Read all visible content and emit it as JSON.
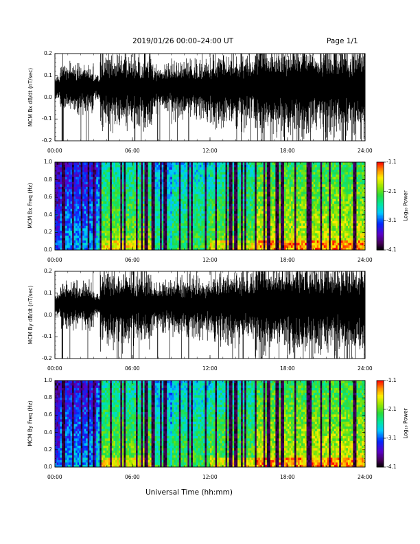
{
  "header": {
    "date_range": "2019/01/26  00:00–24:00 UT",
    "page": "Page 1/1"
  },
  "footer": {
    "xlabel": "Universal Time (hh:mm)"
  },
  "colorbar": {
    "label": "Log₁₀ Power",
    "ticks": [
      "-1.1",
      "-2.1",
      "-3.1",
      "-4.1"
    ]
  },
  "chart_data": [
    {
      "type": "line",
      "ylabel": "MCM Bx dB/dt (nT/sec)",
      "xlabel": "",
      "xlim": [
        0,
        24
      ],
      "ylim": [
        -0.2,
        0.2
      ],
      "x_ticks": [
        "00:00",
        "06:00",
        "12:00",
        "18:00",
        "24:00"
      ],
      "y_ticks": [
        "0.2",
        "0.1",
        "0.0",
        "-0.1",
        "-0.2"
      ],
      "series": [
        {
          "values": [
            0.05
          ]
        }
      ]
    },
    {
      "type": "heatmap",
      "ylabel": "MCM Bx Freq (Hz)",
      "xlim": [
        0,
        24
      ],
      "ylim": [
        0,
        1.0
      ],
      "x_ticks": [
        "00:00",
        "06:00",
        "12:00",
        "18:00",
        "24:00"
      ],
      "y_ticks": [
        "1.0",
        "0.8",
        "0.6",
        "0.4",
        "0.2",
        "0.0"
      ],
      "zlim": [
        -4.1,
        -1.1
      ]
    },
    {
      "type": "line",
      "ylabel": "MCM By dB/dt (nT/sec)",
      "xlim": [
        0,
        24
      ],
      "ylim": [
        -0.2,
        0.2
      ],
      "x_ticks": [
        "00:00",
        "06:00",
        "12:00",
        "18:00",
        "24:00"
      ],
      "y_ticks": [
        "0.2",
        "0.1",
        "0.0",
        "-0.1",
        "-0.2"
      ],
      "series": [
        {
          "values": [
            0.05
          ]
        }
      ]
    },
    {
      "type": "heatmap",
      "ylabel": "MCM By Freq (Hz)",
      "xlim": [
        0,
        24
      ],
      "ylim": [
        0,
        1.0
      ],
      "x_ticks": [
        "00:00",
        "06:00",
        "12:00",
        "18:00",
        "24:00"
      ],
      "y_ticks": [
        "1.0",
        "0.8",
        "0.6",
        "0.4",
        "0.2",
        "0.0"
      ],
      "zlim": [
        -4.1,
        -1.1
      ]
    }
  ]
}
